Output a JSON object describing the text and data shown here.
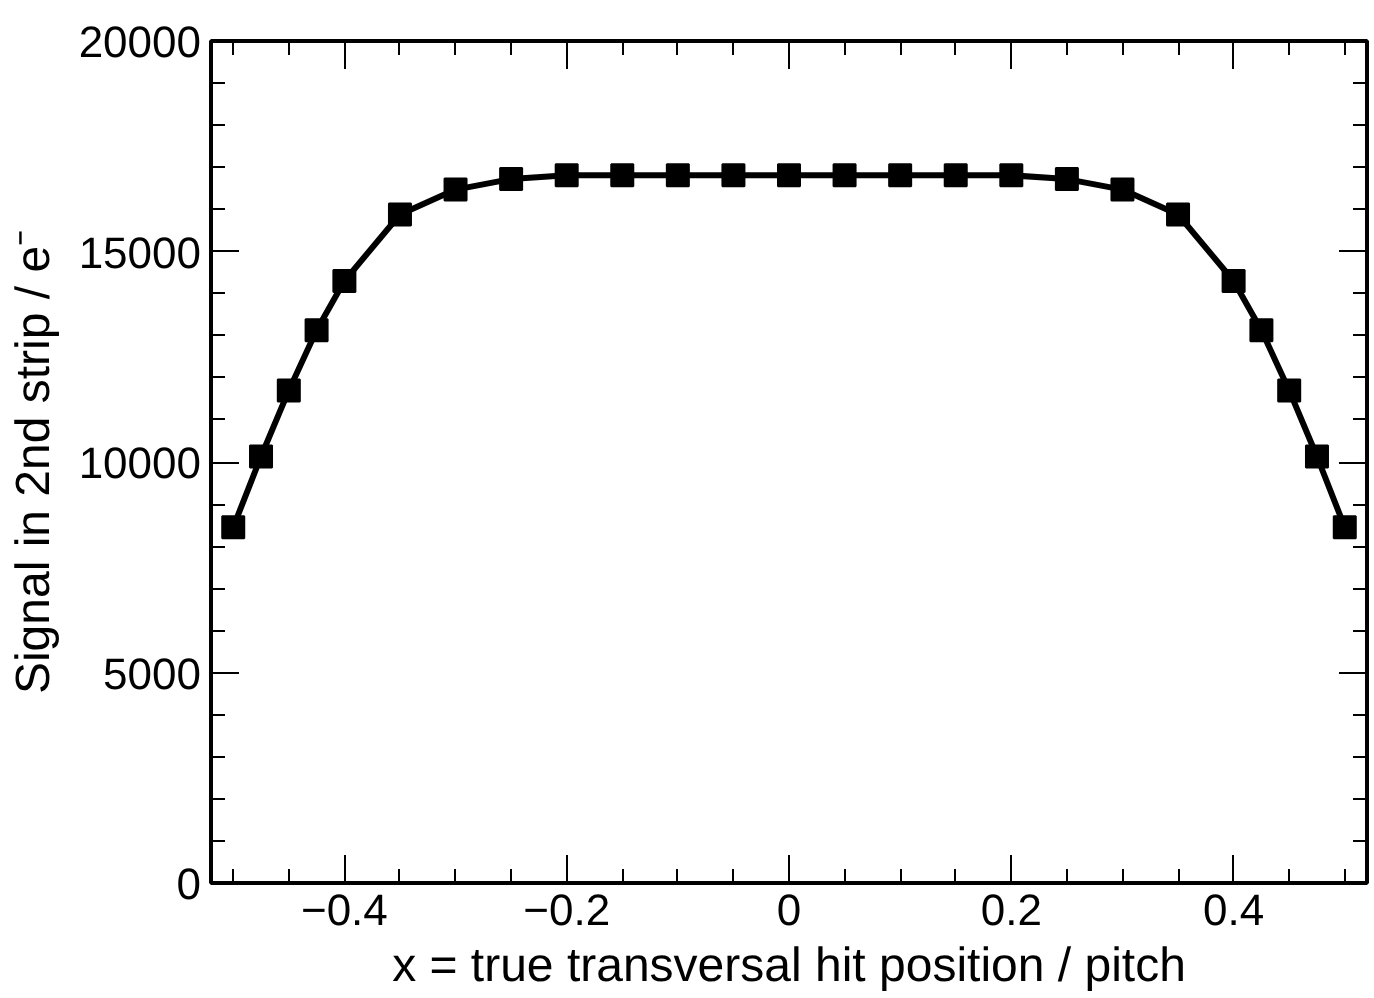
{
  "chart_data": {
    "type": "line",
    "xlabel": "x = true transversal hit position / pitch",
    "ylabel": "Signal in 2nd strip / e⁻",
    "x": [
      -0.5,
      -0.475,
      -0.45,
      -0.425,
      -0.4,
      -0.35,
      -0.3,
      -0.25,
      -0.2,
      -0.15,
      -0.1,
      -0.05,
      0,
      0.05,
      0.1,
      0.15,
      0.2,
      0.25,
      0.3,
      0.35,
      0.4,
      0.425,
      0.45,
      0.475,
      0.5
    ],
    "series": [
      {
        "color": "#000000",
        "values": [
          8450,
          10130,
          11700,
          13130,
          14300,
          15880,
          16470,
          16720,
          16810,
          16810,
          16810,
          16810,
          16810,
          16810,
          16810,
          16810,
          16810,
          16720,
          16470,
          15880,
          14300,
          13130,
          11700,
          10130,
          8450
        ]
      }
    ],
    "marker": "square",
    "line_style": "solid",
    "grid": false,
    "xlim": [
      -0.52,
      0.52
    ],
    "ylim": [
      0,
      20000
    ],
    "xticks": [
      {
        "value": -0.5,
        "label": null
      },
      {
        "value": -0.45,
        "label": null
      },
      -0.4,
      {
        "value": -0.35,
        "label": null
      },
      {
        "value": -0.3,
        "label": null
      },
      {
        "value": -0.25,
        "label": null
      },
      -0.2,
      {
        "value": -0.15,
        "label": null
      },
      {
        "value": -0.1,
        "label": null
      },
      {
        "value": -0.05,
        "label": null
      },
      0,
      {
        "value": 0.05,
        "label": null
      },
      {
        "value": 0.1,
        "label": null
      },
      {
        "value": 0.15,
        "label": null
      },
      0.2,
      {
        "value": 0.25,
        "label": null
      },
      {
        "value": 0.3,
        "label": null
      },
      {
        "value": 0.35,
        "label": null
      },
      0.4,
      {
        "value": 0.45,
        "label": null
      },
      {
        "value": 0.5,
        "label": null
      }
    ],
    "yticks": [
      0,
      {
        "value": 1000,
        "label": null
      },
      {
        "value": 2000,
        "label": null
      },
      {
        "value": 3000,
        "label": null
      },
      {
        "value": 4000,
        "label": null
      },
      5000,
      {
        "value": 6000,
        "label": null
      },
      {
        "value": 7000,
        "label": null
      },
      {
        "value": 8000,
        "label": null
      },
      {
        "value": 9000,
        "label": null
      },
      10000,
      {
        "value": 11000,
        "label": null
      },
      {
        "value": 12000,
        "label": null
      },
      {
        "value": 13000,
        "label": null
      },
      {
        "value": 14000,
        "label": null
      },
      15000,
      {
        "value": 16000,
        "label": null
      },
      {
        "value": 17000,
        "label": null
      },
      {
        "value": 18000,
        "label": null
      },
      {
        "value": 19000,
        "label": null
      },
      20000
    ]
  }
}
